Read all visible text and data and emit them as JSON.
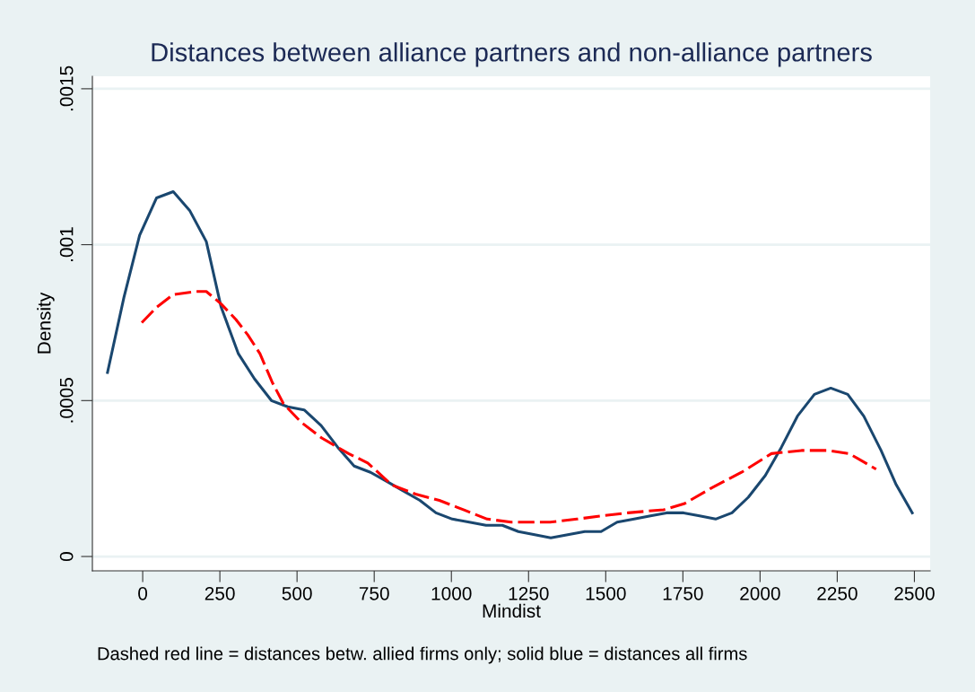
{
  "chart_data": {
    "type": "line",
    "title": "Distances between alliance partners and non-alliance partners",
    "xlabel": "Mindist",
    "ylabel": "Density",
    "annotations": [
      "Dashed red line = distances betw. allied firms only; solid blue = distances all firms"
    ],
    "xlim": [
      -163,
      2551
    ],
    "xticks": [
      0,
      250,
      500,
      750,
      1000,
      1250,
      1500,
      1750,
      2000,
      2250,
      2500
    ],
    "ylim": [
      -4.6e-05,
      0.00154
    ],
    "yticks": [
      {
        "value": 0,
        "label": "0"
      },
      {
        "value": 0.0005,
        "label": ".0005"
      },
      {
        "value": 0.001,
        "label": ".001"
      },
      {
        "value": 0.0015,
        "label": ".0015"
      }
    ],
    "grid": "y",
    "series": [
      {
        "color": "#1a476f",
        "line_style": "solid",
        "x": [
          -114,
          -61,
          -10,
          45,
          99,
          152,
          206,
          254,
          310,
          362,
          417,
          470,
          523,
          578,
          632,
          685,
          738,
          792,
          845,
          898,
          950,
          1003,
          1058,
          1112,
          1165,
          1217,
          1270,
          1322,
          1432,
          1485,
          1537,
          1592,
          1645,
          1697,
          1752,
          1804,
          1856,
          1909,
          1962,
          2017,
          2069,
          2121,
          2176,
          2229,
          2284,
          2336,
          2392,
          2441,
          2493
        ],
        "values": [
          0.00059,
          0.00083,
          0.00103,
          0.00115,
          0.00117,
          0.00111,
          0.00101,
          0.0008,
          0.00065,
          0.00057,
          0.0005,
          0.00048,
          0.00047,
          0.00042,
          0.00035,
          0.00029,
          0.00027,
          0.00024,
          0.00021,
          0.00018,
          0.00014,
          0.00012,
          0.00011,
          0.0001,
          0.0001,
          8e-05,
          7e-05,
          6e-05,
          8e-05,
          8e-05,
          0.00011,
          0.00012,
          0.00013,
          0.00014,
          0.00014,
          0.00013,
          0.00012,
          0.00014,
          0.00019,
          0.00026,
          0.00035,
          0.00045,
          0.00052,
          0.00054,
          0.00052,
          0.00045,
          0.00034,
          0.00023,
          0.00014
        ]
      },
      {
        "color": "#ff0000",
        "line_style": "dashed",
        "x": [
          -3,
          46,
          99,
          172,
          206,
          254,
          302,
          341,
          380,
          419,
          456,
          514,
          580,
          667,
          729,
          806,
          884,
          961,
          1039,
          1116,
          1194,
          1320,
          1407,
          1485,
          1572,
          1688,
          1756,
          1843,
          1940,
          2037,
          2134,
          2221,
          2289,
          2376
        ],
        "values": [
          0.00075,
          0.0008,
          0.00084,
          0.00085,
          0.00085,
          0.00081,
          0.00076,
          0.00071,
          0.00065,
          0.00056,
          0.00049,
          0.00043,
          0.00038,
          0.00033,
          0.0003,
          0.00023,
          0.0002,
          0.00018,
          0.00015,
          0.00012,
          0.00011,
          0.00011,
          0.00012,
          0.00013,
          0.00014,
          0.00015,
          0.00017,
          0.00022,
          0.00027,
          0.00033,
          0.00034,
          0.00034,
          0.00033,
          0.00028
        ]
      }
    ]
  }
}
